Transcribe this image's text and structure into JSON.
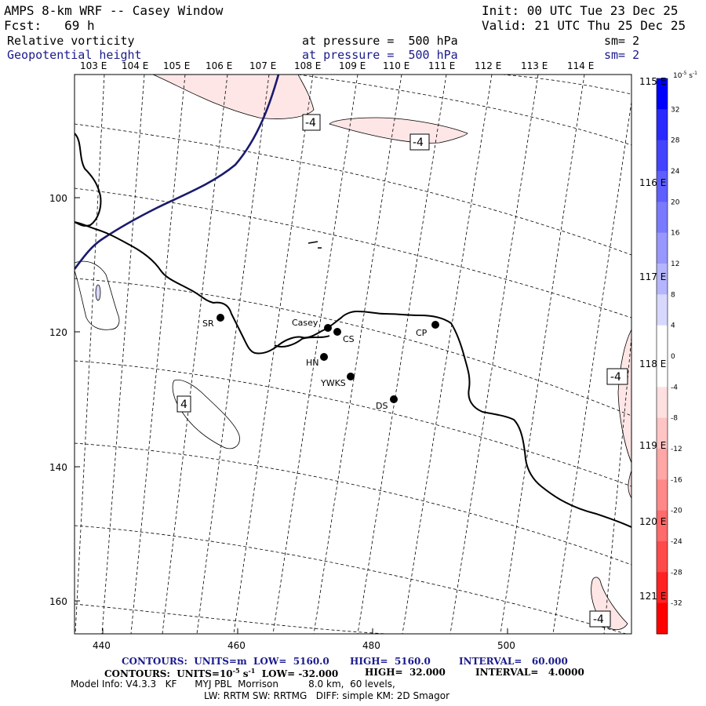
{
  "header": {
    "title": "AMPS 8-km WRF -- Casey Window",
    "init": "Init: 00 UTC Tue 23 Dec 25",
    "forecast": "Fcst:   69 h",
    "valid": "Valid: 21 UTC Thu 25 Dec 25",
    "field1": {
      "name": "Relative vorticity",
      "level": "at pressure =  500 hPa",
      "smooth": "sm= 2"
    },
    "field2": {
      "name": "Geopotential height",
      "level": "at pressure =  500 hPa",
      "smooth": "sm= 2"
    }
  },
  "longitude_labels": [
    "103 E",
    "104 E",
    "105 E",
    "106 E",
    "107 E",
    "108 E",
    "109 E",
    "110 E",
    "111 E",
    "112 E",
    "113 E",
    "114 E"
  ],
  "latitude_labels": [
    "115 E",
    "116 E",
    "117 E",
    "118 E",
    "119 E",
    "120 E",
    "121 E"
  ],
  "x_ticks": [
    "440",
    "460",
    "480",
    "500"
  ],
  "y_ticks": [
    "100",
    "120",
    "140",
    "160"
  ],
  "stations": [
    {
      "id": "SR",
      "label": "SR"
    },
    {
      "id": "Casey",
      "label": "Casey"
    },
    {
      "id": "CS",
      "label": "CS"
    },
    {
      "id": "CP",
      "label": "CP"
    },
    {
      "id": "HN",
      "label": "HN"
    },
    {
      "id": "YWKS",
      "label": "YWKS"
    },
    {
      "id": "DS",
      "label": "DS"
    }
  ],
  "contour_labels": [
    "-4",
    "-4",
    "4",
    "-4",
    "-4"
  ],
  "colorbar": {
    "unit": "10^-5 s^-1",
    "labels": [
      "32",
      "28",
      "24",
      "20",
      "16",
      "12",
      "8",
      "4",
      "0",
      "-4",
      "-8",
      "-12",
      "-16",
      "-20",
      "-24",
      "-28",
      "-32"
    ],
    "colors": [
      "#0000ff",
      "#2a2aff",
      "#4444ff",
      "#5f5fff",
      "#7a7aff",
      "#9797ff",
      "#b5b5ff",
      "#d8d8ff",
      "#ffffff",
      "#ffffff",
      "#ffe0e0",
      "#ffc4c4",
      "#ffa6a6",
      "#ff8888",
      "#ff6a6a",
      "#ff4a4a",
      "#ff2222",
      "#ff0000"
    ]
  },
  "footer": {
    "line1_a": "CONTOURS:  UNITS=m  LOW=  5160.0",
    "line1_b": "HIGH=  5160.0",
    "line1_c": "INTERVAL=   60.000",
    "line2_a": "CONTOURS:  UNITS=10",
    "line2_exp": "-5",
    "line2_b": " s",
    "line2_exp2": "-1",
    "line2_c": "  LOW= -32.000",
    "line2_d": "HIGH=  32.000",
    "line2_e": "INTERVAL=   4.0000",
    "model_info": "Model Info: V4.3.3   KF      MYJ PBL  Morrison          8.0 km,  60 levels,",
    "model_info2": "LW: RRTM SW: RRTMG   DIFF: simple KM: 2D Smagor"
  }
}
